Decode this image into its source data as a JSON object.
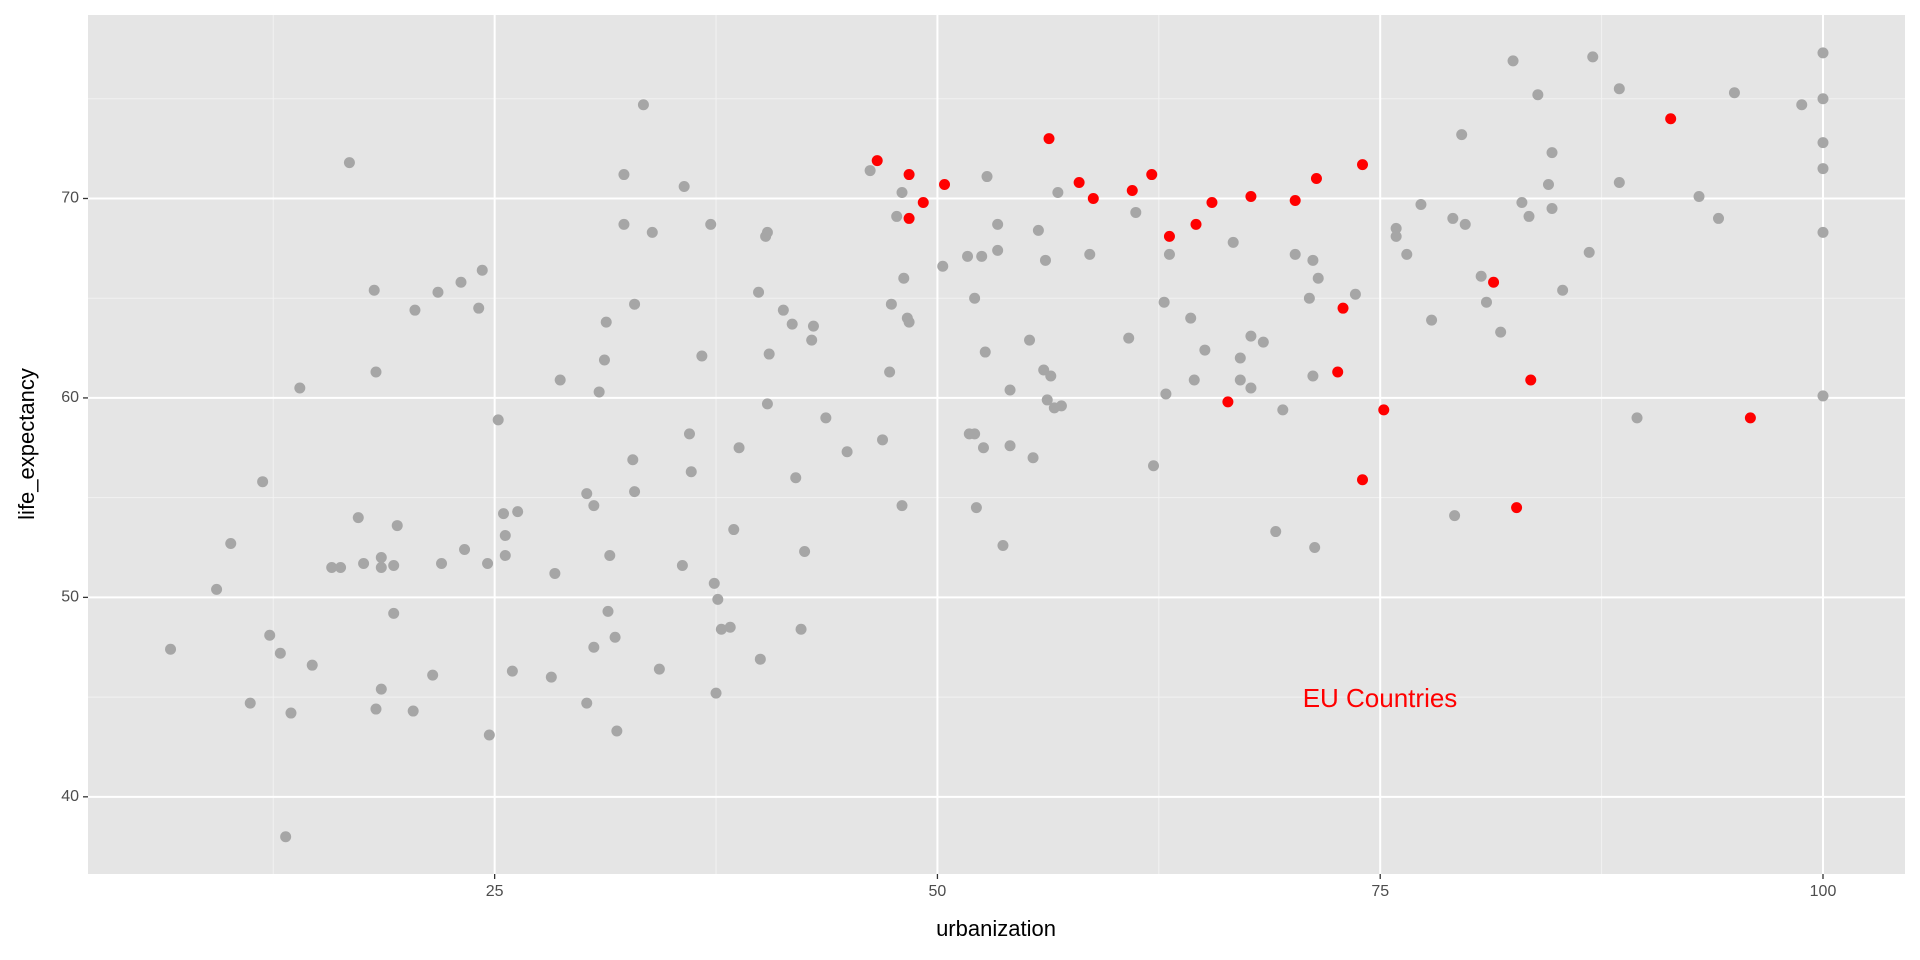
{
  "chart_data": {
    "type": "scatter",
    "x_label": "urbanization",
    "y_label": "life_expectancy",
    "xlim": [
      2.04,
      104.63
    ],
    "ylim": [
      36.13,
      79.2
    ],
    "xticks": [
      25,
      50,
      75,
      100
    ],
    "yticks": [
      40,
      50,
      60,
      70
    ],
    "grid": true,
    "annotation": {
      "text": "EU Countries",
      "color": "#ff0000"
    },
    "series": [
      {
        "color": "#a6a6a6",
        "x": [
          6.7,
          9.3,
          10.1,
          11.2,
          11.9,
          12.3,
          12.9,
          13.2,
          13.5,
          14.0,
          14.7,
          15.8,
          16.3,
          16.8,
          17.3,
          17.6,
          18.2,
          18.3,
          18.3,
          18.6,
          18.6,
          18.6,
          19.3,
          19.3,
          19.5,
          20.4,
          20.5,
          21.5,
          21.8,
          22.0,
          23.1,
          23.3,
          24.1,
          24.3,
          24.6,
          24.7,
          25.2,
          25.5,
          25.6,
          25.6,
          26.0,
          26.3,
          28.2,
          28.4,
          28.7,
          30.2,
          30.2,
          30.6,
          30.6,
          30.9,
          31.2,
          31.3,
          31.4,
          31.5,
          31.8,
          31.9,
          32.3,
          32.3,
          32.8,
          32.9,
          32.9,
          33.4,
          33.9,
          34.3,
          35.6,
          35.7,
          36.0,
          36.1,
          36.7,
          37.2,
          37.4,
          37.5,
          37.6,
          37.8,
          38.3,
          38.5,
          38.8,
          39.9,
          40.0,
          40.3,
          40.4,
          40.4,
          40.5,
          41.3,
          41.8,
          42.0,
          42.3,
          42.5,
          42.9,
          43.0,
          43.7,
          44.9,
          46.2,
          46.9,
          47.3,
          47.4,
          47.7,
          48.0,
          48.0,
          48.1,
          48.3,
          48.4,
          50.3,
          51.7,
          51.8,
          52.1,
          52.1,
          52.2,
          52.5,
          52.6,
          52.7,
          52.8,
          53.4,
          53.4,
          53.7,
          54.1,
          54.1,
          55.2,
          55.4,
          55.7,
          56.0,
          56.1,
          56.2,
          56.4,
          56.6,
          56.8,
          57.0,
          58.6,
          60.8,
          61.2,
          62.2,
          62.8,
          62.9,
          63.1,
          64.3,
          64.5,
          65.1,
          66.7,
          67.1,
          67.1,
          67.7,
          67.7,
          68.4,
          69.1,
          69.5,
          70.2,
          71.0,
          71.2,
          71.2,
          71.3,
          71.5,
          73.6,
          75.9,
          75.9,
          76.5,
          77.3,
          77.9,
          79.1,
          79.2,
          79.6,
          79.8,
          80.7,
          81.0,
          81.8,
          82.5,
          83.0,
          83.4,
          83.9,
          84.5,
          84.7,
          84.7,
          85.3,
          86.8,
          87.0,
          88.5,
          88.5,
          89.5,
          93.0,
          94.1,
          95.0,
          98.8,
          100,
          100,
          100,
          100,
          100,
          100
        ],
        "values": [
          47.4,
          50.4,
          52.7,
          44.7,
          55.8,
          48.1,
          47.2,
          38.0,
          44.2,
          60.5,
          46.6,
          51.5,
          51.5,
          71.8,
          54.0,
          51.7,
          65.4,
          61.3,
          44.4,
          52.0,
          51.5,
          45.4,
          51.6,
          49.2,
          53.6,
          44.3,
          64.4,
          46.1,
          65.3,
          51.7,
          65.8,
          52.4,
          64.5,
          66.4,
          51.7,
          43.1,
          58.9,
          54.2,
          52.1,
          53.1,
          46.3,
          54.3,
          46.0,
          51.2,
          60.9,
          55.2,
          44.7,
          54.6,
          47.5,
          60.3,
          61.9,
          63.8,
          49.3,
          52.1,
          48.0,
          43.3,
          71.2,
          68.7,
          56.9,
          64.7,
          55.3,
          74.7,
          68.3,
          46.4,
          51.6,
          70.6,
          58.2,
          56.3,
          62.1,
          68.7,
          50.7,
          45.2,
          49.9,
          48.4,
          48.5,
          53.4,
          57.5,
          65.3,
          46.9,
          68.1,
          68.3,
          59.7,
          62.2,
          64.4,
          63.7,
          56.0,
          48.4,
          52.3,
          62.9,
          63.6,
          59.0,
          57.3,
          71.4,
          57.9,
          61.3,
          64.7,
          69.1,
          54.6,
          70.3,
          66.0,
          64.0,
          63.8,
          66.6,
          67.1,
          58.2,
          58.2,
          65.0,
          54.5,
          67.1,
          57.5,
          62.3,
          71.1,
          68.7,
          67.4,
          52.6,
          57.6,
          60.4,
          62.9,
          57.0,
          68.4,
          61.4,
          66.9,
          59.9,
          61.1,
          59.5,
          70.3,
          59.6,
          67.2,
          63.0,
          69.3,
          56.6,
          64.8,
          60.2,
          67.2,
          64.0,
          60.9,
          62.4,
          67.8,
          62.0,
          60.9,
          63.1,
          60.5,
          62.8,
          53.3,
          59.4,
          67.2,
          65.0,
          66.9,
          61.1,
          52.5,
          66.0,
          65.2,
          68.5,
          68.1,
          67.2,
          69.7,
          63.9,
          69.0,
          54.1,
          73.2,
          68.7,
          66.1,
          64.8,
          63.3,
          76.9,
          69.8,
          69.1,
          75.2,
          70.7,
          72.3,
          69.5,
          65.4,
          67.3,
          77.1,
          75.5,
          70.8,
          59.0,
          70.1,
          69.0,
          75.3,
          74.7,
          77.3,
          75.0,
          72.8,
          71.5,
          68.3,
          60.1
        ]
      },
      {
        "color": "#ff0000",
        "x": [
          46.6,
          48.4,
          48.4,
          49.2,
          50.4,
          56.3,
          58.0,
          58.8,
          61.0,
          62.1,
          63.1,
          64.6,
          65.5,
          66.4,
          67.7,
          70.2,
          71.4,
          72.6,
          72.9,
          74.0,
          74.0,
          75.2,
          81.4,
          82.7,
          83.5,
          91.4,
          95.9
        ],
        "values": [
          71.9,
          71.2,
          69.0,
          69.8,
          70.7,
          73.0,
          70.8,
          70.0,
          70.4,
          71.2,
          68.1,
          68.7,
          69.8,
          59.8,
          70.1,
          69.9,
          71.0,
          61.3,
          64.5,
          71.7,
          55.9,
          59.4,
          65.8,
          54.5,
          60.9,
          74.0,
          59.0
        ]
      }
    ]
  }
}
